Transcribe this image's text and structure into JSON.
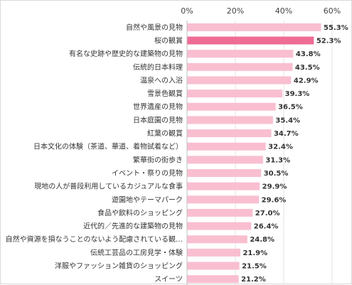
{
  "chart_data": {
    "type": "bar",
    "orientation": "horizontal",
    "title": "",
    "xlabel": "",
    "ylabel": "",
    "xlim": [
      0,
      60
    ],
    "x_ticks": [
      "0%",
      "20%",
      "40%",
      "60%"
    ],
    "grid": true,
    "highlight_color": "#ee6c95",
    "bar_color": "#f9bfd0",
    "categories": [
      "自然や風景の見物",
      "桜の観賞",
      "有名な史跡や歴史的な建築物の見物",
      "伝統的日本料理",
      "温泉への入浴",
      "雪景色観賞",
      "世界遺産の見物",
      "日本庭園の見物",
      "紅葉の観賞",
      "日本文化の体験（茶道、華道、着物試着など）",
      "繁華街の街歩き",
      "イベント・祭りの見物",
      "現地の人が普段利用しているカジュアルな食事",
      "遊園地やテーマパーク",
      "食品や飲料のショッピング",
      "近代的／先進的な建築物の見物",
      "自然や資源を損なうことのないよう配慮されている観…",
      "伝統工芸品の工房見学・体験",
      "洋服やファッション雑貨のショッピング",
      "スイーツ"
    ],
    "values": [
      55.3,
      52.3,
      43.8,
      43.5,
      42.9,
      39.3,
      36.5,
      35.4,
      34.7,
      32.4,
      31.3,
      30.5,
      29.9,
      29.6,
      27.0,
      26.4,
      24.8,
      21.9,
      21.5,
      21.2
    ],
    "value_labels": [
      "55.3%",
      "52.3%",
      "43.8%",
      "43.5%",
      "42.9%",
      "39.3%",
      "36.5%",
      "35.4%",
      "34.7%",
      "32.4%",
      "31.3%",
      "30.5%",
      "29.9%",
      "29.6%",
      "27.0%",
      "26.4%",
      "24.8%",
      "21.9%",
      "21.5%",
      "21.2%"
    ],
    "highlight_index": 1
  }
}
